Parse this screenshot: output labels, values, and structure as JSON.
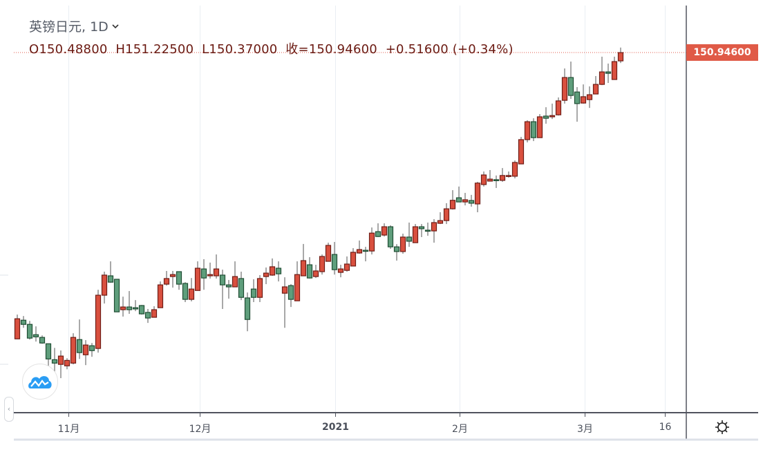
{
  "header": {
    "symbol": "英镑日元, 1D",
    "ohlc_line": {
      "open": "O150.48800",
      "high": "H151.22500",
      "low": "L150.37000",
      "close": "收=150.94600",
      "change": "+0.51600 (+0.34%)"
    }
  },
  "price_label": "150.94600",
  "colors": {
    "up": "#d9503f",
    "down": "#5f9e7c",
    "price_tag": "#e05a47"
  },
  "icons": {
    "logo": "tradingview-cloud-icon",
    "settings": "gear-icon",
    "collapse": "chevron-left-icon",
    "interval": "chevron-down-icon"
  },
  "chart_data": {
    "type": "candlestick",
    "title": "英镑日元, 1D",
    "x_tick_labels": [
      {
        "label": "11月",
        "index": 8.2
      },
      {
        "label": "12月",
        "index": 29.3
      },
      {
        "label": "2021",
        "index": 51.1,
        "bold": true
      },
      {
        "label": "2月",
        "index": 71.1
      },
      {
        "label": "3月",
        "index": 91.2
      },
      {
        "label": "16",
        "index": 104.1
      }
    ],
    "last_price": 150.946,
    "ylim": [
      132.6,
      153.85
    ],
    "grid": "vertical",
    "candles": [
      [
        135.14,
        136.48,
        135.14,
        136.25
      ],
      [
        136.17,
        136.4,
        135.75,
        135.94
      ],
      [
        135.94,
        136.13,
        135.1,
        135.18
      ],
      [
        135.37,
        135.83,
        134.99,
        135.25
      ],
      [
        135.22,
        135.33,
        134.87,
        134.91
      ],
      [
        134.87,
        134.87,
        133.57,
        134.03
      ],
      [
        133.99,
        134.64,
        133.23,
        133.8
      ],
      [
        133.73,
        134.5,
        132.97,
        134.19
      ],
      [
        133.65,
        134.07,
        133.46,
        133.95
      ],
      [
        133.8,
        135.45,
        133.73,
        135.22
      ],
      [
        135.1,
        136.21,
        134.03,
        134.38
      ],
      [
        134.26,
        135.07,
        133.69,
        134.8
      ],
      [
        134.76,
        134.91,
        134.15,
        134.49
      ],
      [
        134.61,
        137.85,
        134.38,
        137.55
      ],
      [
        137.55,
        138.85,
        137.09,
        138.66
      ],
      [
        138.62,
        139.42,
        138.24,
        138.27
      ],
      [
        138.43,
        138.43,
        136.63,
        136.63
      ],
      [
        136.75,
        137.47,
        136.37,
        136.9
      ],
      [
        136.9,
        137.78,
        136.52,
        136.75
      ],
      [
        136.86,
        137.28,
        136.67,
        136.79
      ],
      [
        136.98,
        137.01,
        136.48,
        136.52
      ],
      [
        136.6,
        136.79,
        136.02,
        136.29
      ],
      [
        136.33,
        136.94,
        136.33,
        136.75
      ],
      [
        136.86,
        138.31,
        136.86,
        138.12
      ],
      [
        138.16,
        138.89,
        138.08,
        138.47
      ],
      [
        138.58,
        138.89,
        137.97,
        138.69
      ],
      [
        138.85,
        138.85,
        137.85,
        138.16
      ],
      [
        138.2,
        138.27,
        137.17,
        137.32
      ],
      [
        137.32,
        138.5,
        137.21,
        137.89
      ],
      [
        137.81,
        139.42,
        137.81,
        139.04
      ],
      [
        139.0,
        139.54,
        137.85,
        138.5
      ],
      [
        138.62,
        139.35,
        138.47,
        138.69
      ],
      [
        138.62,
        139.8,
        138.47,
        139.0
      ],
      [
        138.66,
        138.96,
        136.79,
        138.12
      ],
      [
        138.12,
        138.39,
        137.36,
        138.01
      ],
      [
        138.01,
        139.42,
        138.01,
        138.58
      ],
      [
        138.47,
        138.85,
        137.28,
        137.43
      ],
      [
        137.4,
        137.7,
        135.56,
        136.21
      ],
      [
        137.89,
        138.43,
        137.17,
        137.43
      ],
      [
        137.43,
        138.66,
        137.17,
        138.47
      ],
      [
        138.58,
        139.08,
        138.16,
        138.77
      ],
      [
        138.66,
        139.58,
        138.62,
        139.12
      ],
      [
        139.04,
        139.42,
        138.31,
        138.73
      ],
      [
        137.66,
        138.54,
        135.75,
        138.01
      ],
      [
        138.08,
        138.16,
        136.9,
        137.32
      ],
      [
        137.24,
        139.42,
        137.24,
        138.69
      ],
      [
        138.62,
        140.38,
        138.62,
        139.46
      ],
      [
        139.23,
        139.65,
        138.47,
        138.5
      ],
      [
        138.58,
        139.23,
        138.5,
        138.89
      ],
      [
        138.85,
        139.8,
        138.69,
        139.69
      ],
      [
        139.42,
        140.45,
        139.42,
        140.3
      ],
      [
        139.8,
        140.49,
        138.69,
        138.96
      ],
      [
        138.81,
        139.23,
        138.54,
        139.0
      ],
      [
        138.92,
        139.69,
        138.85,
        139.27
      ],
      [
        139.16,
        140.15,
        139.16,
        139.92
      ],
      [
        139.88,
        140.57,
        139.84,
        140.07
      ],
      [
        140.03,
        140.22,
        139.42,
        139.99
      ],
      [
        139.99,
        141.29,
        139.8,
        140.98
      ],
      [
        141.06,
        141.52,
        140.76,
        140.79
      ],
      [
        140.87,
        141.52,
        140.79,
        141.33
      ],
      [
        141.33,
        141.41,
        140.11,
        140.22
      ],
      [
        140.22,
        140.37,
        139.46,
        139.96
      ],
      [
        139.96,
        140.95,
        139.84,
        140.76
      ],
      [
        140.76,
        141.56,
        140.22,
        140.53
      ],
      [
        140.45,
        141.48,
        140.45,
        141.33
      ],
      [
        141.33,
        141.48,
        140.76,
        141.22
      ],
      [
        141.14,
        141.56,
        140.83,
        141.1
      ],
      [
        141.1,
        141.75,
        140.45,
        141.56
      ],
      [
        141.52,
        142.13,
        141.48,
        141.67
      ],
      [
        141.67,
        142.63,
        141.48,
        142.32
      ],
      [
        142.32,
        143.35,
        142.28,
        142.79
      ],
      [
        142.93,
        143.55,
        142.7,
        142.7
      ],
      [
        142.7,
        143.2,
        142.51,
        142.82
      ],
      [
        142.78,
        143.09,
        142.44,
        142.63
      ],
      [
        142.59,
        143.81,
        142.13,
        143.74
      ],
      [
        143.66,
        144.38,
        143.55,
        144.19
      ],
      [
        143.85,
        144.46,
        143.85,
        143.96
      ],
      [
        143.93,
        144.16,
        143.47,
        143.89
      ],
      [
        143.89,
        144.57,
        143.81,
        144.16
      ],
      [
        144.12,
        144.38,
        144.04,
        144.16
      ],
      [
        144.12,
        144.99,
        144.0,
        144.88
      ],
      [
        144.8,
        146.29,
        144.8,
        146.14
      ],
      [
        146.14,
        147.21,
        145.99,
        147.13
      ],
      [
        147.13,
        147.32,
        146.06,
        146.25
      ],
      [
        146.25,
        147.55,
        146.25,
        147.4
      ],
      [
        147.44,
        147.93,
        147.02,
        147.32
      ],
      [
        147.4,
        148.13,
        147.28,
        147.47
      ],
      [
        147.51,
        148.47,
        147.47,
        148.28
      ],
      [
        148.31,
        150.07,
        148.13,
        149.57
      ],
      [
        149.57,
        150.45,
        148.39,
        148.58
      ],
      [
        148.77,
        149.04,
        147.13,
        148.13
      ],
      [
        148.16,
        149.19,
        148.13,
        148.51
      ],
      [
        148.35,
        149.08,
        147.89,
        148.62
      ],
      [
        148.66,
        149.65,
        148.66,
        149.19
      ],
      [
        149.19,
        150.72,
        149.15,
        149.88
      ],
      [
        149.88,
        150.34,
        149.27,
        149.8
      ],
      [
        149.46,
        150.72,
        149.46,
        150.45
      ],
      [
        150.488,
        151.225,
        150.37,
        150.946
      ]
    ]
  }
}
